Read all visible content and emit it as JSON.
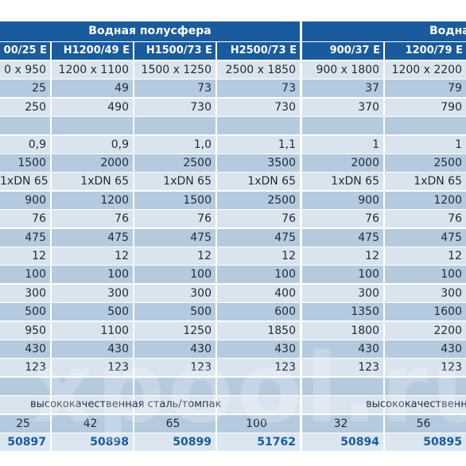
{
  "groups": [
    "Водная полусфера",
    "Водная"
  ],
  "headers": [
    "00/25 E",
    "H1200/49 E",
    "H1500/73 E",
    "H2500/73 E",
    "900/37 E",
    "1200/79 E"
  ],
  "rows": [
    [
      "0 x 950",
      "1200 x 1100",
      "1500 x 1250",
      "2500 x 1850",
      "900 x 1800",
      "1200 x 2200"
    ],
    [
      "25",
      "49",
      "73",
      "73",
      "37",
      "79"
    ],
    [
      "250",
      "490",
      "730",
      "730",
      "370",
      "790"
    ],
    [
      "",
      "",
      "",
      "",
      "",
      ""
    ],
    [
      "0,9",
      "0,9",
      "1,0",
      "1,1",
      "1",
      "1"
    ],
    [
      "1500",
      "2000",
      "2500",
      "3500",
      "2000",
      "2500"
    ],
    [
      "1xDN 65",
      "1xDN 65",
      "1xDN 65",
      "1xDN 65",
      "1xDN 65",
      "1xDN 65"
    ],
    [
      "900",
      "1200",
      "1500",
      "2500",
      "900",
      "1200"
    ],
    [
      "76",
      "76",
      "76",
      "76",
      "76",
      "76"
    ],
    [
      "475",
      "475",
      "475",
      "475",
      "475",
      "475"
    ],
    [
      "12",
      "12",
      "12",
      "12",
      "12",
      "12"
    ],
    [
      "100",
      "100",
      "100",
      "100",
      "100",
      "100"
    ],
    [
      "300",
      "300",
      "300",
      "400",
      "300",
      "300"
    ],
    [
      "500",
      "500",
      "500",
      "600",
      "1350",
      "1600"
    ],
    [
      "950",
      "1100",
      "1250",
      "1850",
      "1800",
      "2200"
    ],
    [
      "430",
      "430",
      "430",
      "430",
      "430",
      "430"
    ],
    [
      "123",
      "123",
      "123",
      "123",
      "123",
      "123"
    ],
    [
      "",
      "",
      "",
      "",
      "",
      ""
    ]
  ],
  "material": [
    "высококачественная сталь/томпак",
    "высококачественн"
  ],
  "weights": [
    "25",
    "42",
    "65",
    "100",
    "32",
    "56"
  ],
  "articles": [
    "50897",
    "50898",
    "50899",
    "51762",
    "50894",
    "50895"
  ],
  "watermark": "xpool.ru",
  "colors": {
    "header": "#1a5b9e",
    "row_light": "#d9e4ef",
    "row_dark": "#b6cadf",
    "total_text": "#1a5b9e"
  }
}
